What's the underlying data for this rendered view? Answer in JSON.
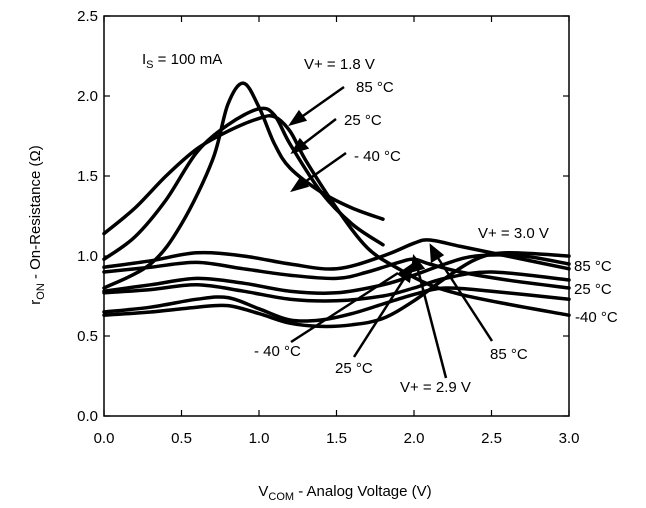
{
  "chart_data": {
    "type": "line",
    "title": "",
    "xlabel": {
      "main": "V",
      "sub": "COM",
      "rest": " - Analog Voltage (V)"
    },
    "ylabel": {
      "main": "r",
      "sub": "ON",
      "rest": " -  On-Resistance (Ω)"
    },
    "xlim": [
      0,
      3
    ],
    "ylim": [
      0,
      2.5
    ],
    "xticks": [
      "0.0",
      "0.5",
      "1.0",
      "1.5",
      "2.0",
      "2.5",
      "3.0"
    ],
    "yticks": [
      "0.0",
      "0.5",
      "1.0",
      "1.5",
      "2.0",
      "2.5"
    ],
    "grid": false,
    "series": [
      {
        "x": [
          0,
          0.3,
          0.5,
          0.7,
          0.8,
          0.9,
          1.0,
          1.1,
          1.2,
          1.4,
          1.6,
          1.8
        ],
        "y": [
          0.8,
          0.95,
          1.2,
          1.6,
          1.95,
          2.08,
          1.93,
          1.7,
          1.55,
          1.4,
          1.3,
          1.23
        ]
      },
      {
        "x": [
          0,
          0.2,
          0.4,
          0.6,
          0.8,
          1.0,
          1.1,
          1.2,
          1.4,
          1.6,
          1.8
        ],
        "y": [
          0.98,
          1.12,
          1.35,
          1.65,
          1.82,
          1.92,
          1.88,
          1.7,
          1.4,
          1.2,
          1.07
        ]
      },
      {
        "x": [
          0,
          0.2,
          0.4,
          0.6,
          0.8,
          1.0,
          1.1,
          1.2,
          1.3,
          1.5,
          1.7,
          1.9,
          2.1,
          2.3,
          2.6,
          3.0
        ],
        "y": [
          1.14,
          1.3,
          1.5,
          1.67,
          1.78,
          1.86,
          1.87,
          1.78,
          1.6,
          1.3,
          1.05,
          0.92,
          0.82,
          0.76,
          0.7,
          0.63
        ]
      },
      {
        "x": [
          0,
          0.3,
          0.6,
          0.9,
          1.2,
          1.5,
          1.8,
          2.0,
          2.1,
          2.3,
          2.6,
          3.0
        ],
        "y": [
          0.93,
          0.97,
          1.02,
          1.0,
          0.95,
          0.92,
          1.0,
          1.08,
          1.1,
          1.06,
          1.0,
          0.92
        ]
      },
      {
        "x": [
          0,
          0.3,
          0.6,
          0.9,
          1.2,
          1.5,
          1.7,
          1.9,
          2.0,
          2.1,
          2.3,
          2.6,
          3.0
        ],
        "y": [
          0.9,
          0.93,
          0.96,
          0.92,
          0.88,
          0.86,
          0.9,
          0.96,
          0.98,
          0.95,
          0.9,
          0.85,
          0.8
        ]
      },
      {
        "x": [
          0,
          0.3,
          0.6,
          0.9,
          1.2,
          1.5,
          1.8,
          2.0,
          2.2,
          2.4,
          2.7,
          3.0
        ],
        "y": [
          0.78,
          0.82,
          0.86,
          0.83,
          0.78,
          0.77,
          0.82,
          0.88,
          0.95,
          1.0,
          1.0,
          0.95
        ]
      },
      {
        "x": [
          0,
          0.3,
          0.6,
          0.9,
          1.2,
          1.5,
          1.8,
          2.0,
          2.2,
          2.5,
          3.0
        ],
        "y": [
          0.77,
          0.79,
          0.82,
          0.78,
          0.73,
          0.72,
          0.75,
          0.8,
          0.86,
          0.9,
          0.85
        ]
      },
      {
        "x": [
          0,
          0.3,
          0.6,
          0.8,
          1.0,
          1.2,
          1.4,
          1.6,
          1.8,
          2.0,
          2.2,
          2.5,
          3.0
        ],
        "y": [
          0.65,
          0.68,
          0.73,
          0.74,
          0.67,
          0.6,
          0.6,
          0.64,
          0.7,
          0.76,
          0.8,
          0.78,
          0.73
        ]
      },
      {
        "x": [
          0,
          0.3,
          0.6,
          0.8,
          1.0,
          1.2,
          1.4,
          1.6,
          1.8,
          2.0,
          2.2,
          2.4,
          2.6,
          3.0
        ],
        "y": [
          0.63,
          0.65,
          0.68,
          0.69,
          0.64,
          0.58,
          0.56,
          0.57,
          0.61,
          0.72,
          0.86,
          0.98,
          1.02,
          1.0
        ]
      }
    ],
    "annotations": {
      "is_label": {
        "main": "I",
        "sub": "S",
        "rest": " = 100 mA"
      },
      "vplus_18": "V+ = 1.8 V",
      "t85_top": "85 °C",
      "t25_top": "25 °C",
      "tm40_top": "- 40  °C",
      "vplus_30": "V+ = 3.0 V",
      "t85_right": "85 °C",
      "t25_right": "25 °C",
      "tm40_right": "-40  °C",
      "tm40_bottom": "- 40 °C",
      "t25_bottom": "25 °C",
      "t85_bottom": "85 °C",
      "vplus_29": "V+ = 2.9 V"
    }
  }
}
